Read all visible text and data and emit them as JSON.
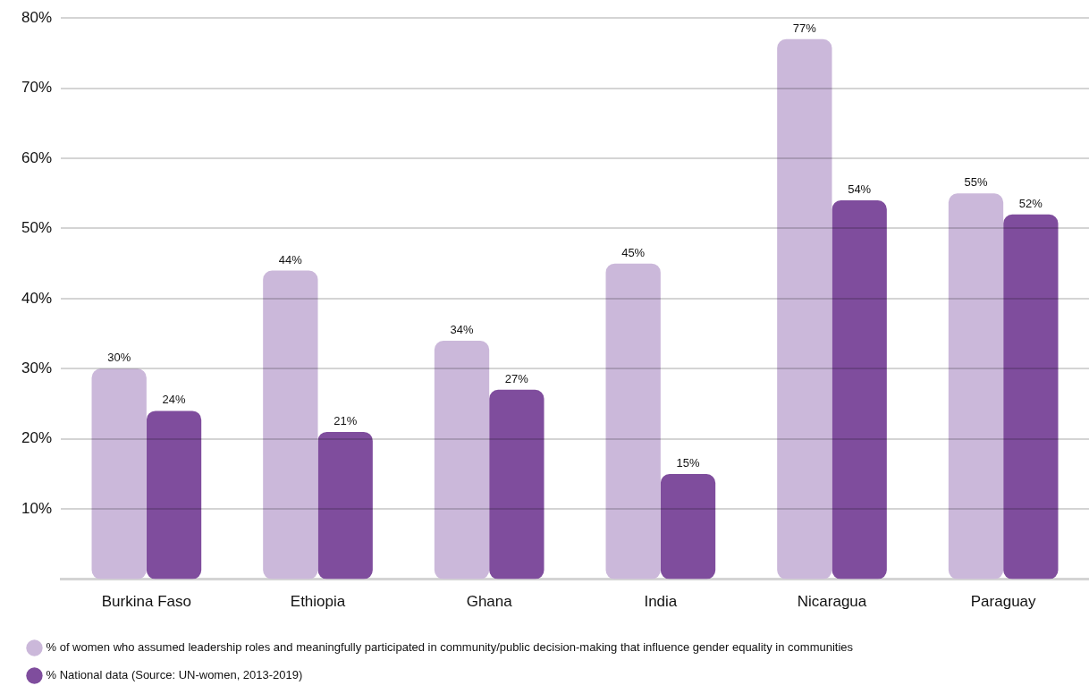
{
  "chart_data": {
    "type": "bar",
    "categories": [
      "Burkina Faso",
      "Ethiopia",
      "Ghana",
      "India",
      "Nicaragua",
      "Paraguay"
    ],
    "series": [
      {
        "name": "% of women who assumed leadership roles and meaningfully participated in community/public decision-making that influence gender equality in communities",
        "color": "#cbb8da",
        "values": [
          30,
          44,
          34,
          45,
          77,
          55
        ],
        "value_labels": [
          "30%",
          "44%",
          "34%",
          "45%",
          "77%",
          "55%"
        ]
      },
      {
        "name": "% National data (Source: UN-women, 2013-2019)",
        "color": "#7f4d9d",
        "values": [
          24,
          21,
          27,
          15,
          54,
          52
        ],
        "value_labels": [
          "24%",
          "21%",
          "27%",
          "15%",
          "54%",
          "52%"
        ]
      }
    ],
    "ylim": [
      0,
      80
    ],
    "yticks": [
      {
        "value": 10,
        "label": "10%"
      },
      {
        "value": 20,
        "label": "20%"
      },
      {
        "value": 30,
        "label": "30%"
      },
      {
        "value": 40,
        "label": "40%"
      },
      {
        "value": 50,
        "label": "50%"
      },
      {
        "value": 60,
        "label": "60%"
      },
      {
        "value": 70,
        "label": "70%"
      },
      {
        "value": 80,
        "label": "80%"
      }
    ],
    "grid": "y",
    "legend": "bottom left"
  }
}
